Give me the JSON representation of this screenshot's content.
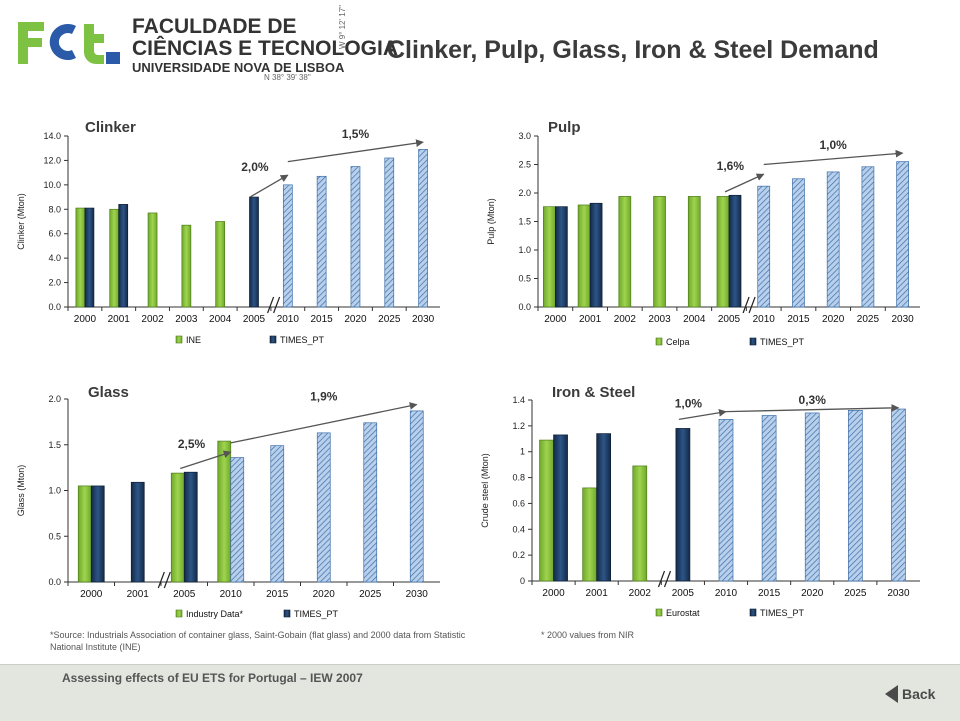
{
  "header": {
    "logo_mark": "FCT",
    "institution_line1": "FACULDADE DE",
    "institution_line2": "CIÊNCIAS E TECNOLOGIA",
    "institution_line3": "UNIVERSIDADE NOVA DE LISBOA",
    "coord_n": "N 38° 39' 38\"",
    "coord_w": "W 9° 12' 17\"",
    "title": "Clinker, Pulp, Glass, Iron & Steel Demand"
  },
  "footer": {
    "text": "Assessing effects of EU ETS for Portugal – IEW 2007",
    "back_label": "Back"
  },
  "colors": {
    "green": "#8dc63f",
    "navy": "#1f3a5f",
    "hatch": "#a9c4e6",
    "logo_green": "#7dc242",
    "logo_blue": "#2a5aa8"
  },
  "notes": {
    "glass_source": "*Source: Industrials Association of container glass, Saint-Gobain (flat glass) and 2000 data from Statistic National Institute (INE)",
    "iron_source": "* 2000 values from NIR"
  },
  "chart_data": [
    {
      "id": "clinker",
      "type": "bar",
      "title": "Clinker",
      "ylabel": "Clinker (Mton)",
      "ylim": [
        0,
        14
      ],
      "yticks": [
        "0.0",
        "2.0",
        "4.0",
        "6.0",
        "8.0",
        "10.0",
        "12.0",
        "14.0"
      ],
      "categories": [
        "2000",
        "2001",
        "2002",
        "2003",
        "2004",
        "2005",
        "2010",
        "2015",
        "2020",
        "2025",
        "2030"
      ],
      "break_after": "2005",
      "series": [
        {
          "name": "INE",
          "style": "green",
          "values": [
            8.1,
            8.0,
            7.7,
            6.7,
            7.0,
            null,
            null,
            null,
            null,
            null,
            null
          ]
        },
        {
          "name": "TIMES_PT",
          "style": "navy",
          "values": [
            8.1,
            8.4,
            null,
            null,
            null,
            9.0,
            null,
            null,
            null,
            null,
            null
          ]
        },
        {
          "name": "",
          "style": "hatch",
          "values": [
            null,
            null,
            null,
            null,
            null,
            null,
            10.0,
            10.7,
            11.5,
            12.2,
            12.9
          ]
        }
      ],
      "legend": [
        "INE",
        "TIMES_PT"
      ],
      "annotations": [
        {
          "label": "2,0%",
          "from": [
            5,
            9.0
          ],
          "to": [
            6,
            10.8
          ]
        },
        {
          "label": "1,5%",
          "from": [
            6,
            11.9
          ],
          "to": [
            10,
            13.5
          ]
        }
      ]
    },
    {
      "id": "pulp",
      "type": "bar",
      "title": "Pulp",
      "ylabel": "Pulp (Mton)",
      "ylim": [
        0,
        3
      ],
      "yticks": [
        "0.0",
        "0.5",
        "1.0",
        "1.5",
        "2.0",
        "2.5",
        "3.0"
      ],
      "categories": [
        "2000",
        "2001",
        "2002",
        "2003",
        "2004",
        "2005",
        "2010",
        "2015",
        "2020",
        "2025",
        "2030"
      ],
      "break_after": "2005",
      "series": [
        {
          "name": "Celpa",
          "style": "green",
          "values": [
            1.76,
            1.79,
            1.94,
            1.94,
            1.94,
            1.94,
            null,
            null,
            null,
            null,
            null
          ]
        },
        {
          "name": "TIMES_PT",
          "style": "navy",
          "values": [
            1.76,
            1.82,
            null,
            null,
            null,
            1.96,
            null,
            null,
            null,
            null,
            null
          ]
        },
        {
          "name": "",
          "style": "hatch",
          "values": [
            null,
            null,
            null,
            null,
            null,
            null,
            2.12,
            2.25,
            2.37,
            2.46,
            2.55
          ]
        }
      ],
      "legend": [
        "Celpa",
        "TIMES_PT"
      ],
      "annotations": [
        {
          "label": "1,6%",
          "from": [
            5,
            2.02
          ],
          "to": [
            6,
            2.33
          ]
        },
        {
          "label": "1,0%",
          "from": [
            6,
            2.5
          ],
          "to": [
            10,
            2.7
          ]
        }
      ]
    },
    {
      "id": "glass",
      "type": "bar",
      "title": "Glass",
      "ylabel": "Glass (Mton)",
      "ylim": [
        0,
        2
      ],
      "yticks": [
        "0.0",
        "0.5",
        "1.0",
        "1.5",
        "2.0"
      ],
      "categories": [
        "2000",
        "2001",
        "2005",
        "2010",
        "2015",
        "2020",
        "2025",
        "2030"
      ],
      "break_after": "2001",
      "series": [
        {
          "name": "Industry Data*",
          "style": "green",
          "values": [
            1.05,
            null,
            1.19,
            1.54,
            null,
            null,
            null,
            null
          ]
        },
        {
          "name": "TIMES_PT",
          "style": "navy",
          "values": [
            1.05,
            1.09,
            1.2,
            null,
            null,
            null,
            null,
            null
          ]
        },
        {
          "name": "",
          "style": "hatch",
          "values": [
            null,
            null,
            null,
            1.36,
            1.49,
            1.63,
            1.74,
            1.87
          ]
        }
      ],
      "legend": [
        "Industry Data*",
        "TIMES_PT"
      ],
      "annotations": [
        {
          "label": "2,5%",
          "from": [
            2,
            1.24
          ],
          "to": [
            3,
            1.42
          ]
        },
        {
          "label": "1,9%",
          "from": [
            3,
            1.52
          ],
          "to": [
            7,
            1.94
          ]
        }
      ]
    },
    {
      "id": "iron",
      "type": "bar",
      "title": "Iron & Steel",
      "ylabel": "Crude steel (Mton)",
      "ylim": [
        0,
        1.4
      ],
      "yticks": [
        "0",
        "0.2",
        "0.4",
        "0.6",
        "0.8",
        "1",
        "1.2",
        "1.4"
      ],
      "categories": [
        "2000",
        "2001",
        "2002",
        "2005",
        "2010",
        "2015",
        "2020",
        "2025",
        "2030"
      ],
      "break_after": "2002",
      "series": [
        {
          "name": "Eurostat",
          "style": "green",
          "values": [
            1.09,
            0.72,
            0.89,
            null,
            null,
            null,
            null,
            null,
            null
          ]
        },
        {
          "name": "TIMES_PT",
          "style": "navy",
          "values": [
            1.13,
            1.14,
            null,
            1.18,
            null,
            null,
            null,
            null,
            null
          ]
        },
        {
          "name": "",
          "style": "hatch",
          "values": [
            null,
            null,
            null,
            null,
            1.25,
            1.28,
            1.3,
            1.32,
            1.33
          ]
        }
      ],
      "legend": [
        "Eurostat",
        "TIMES_PT"
      ],
      "annotations": [
        {
          "label": "1,0%",
          "from": [
            3,
            1.25
          ],
          "to": [
            4,
            1.31
          ]
        },
        {
          "label": "0,3%",
          "from": [
            4,
            1.31
          ],
          "to": [
            8,
            1.34
          ]
        }
      ]
    }
  ]
}
